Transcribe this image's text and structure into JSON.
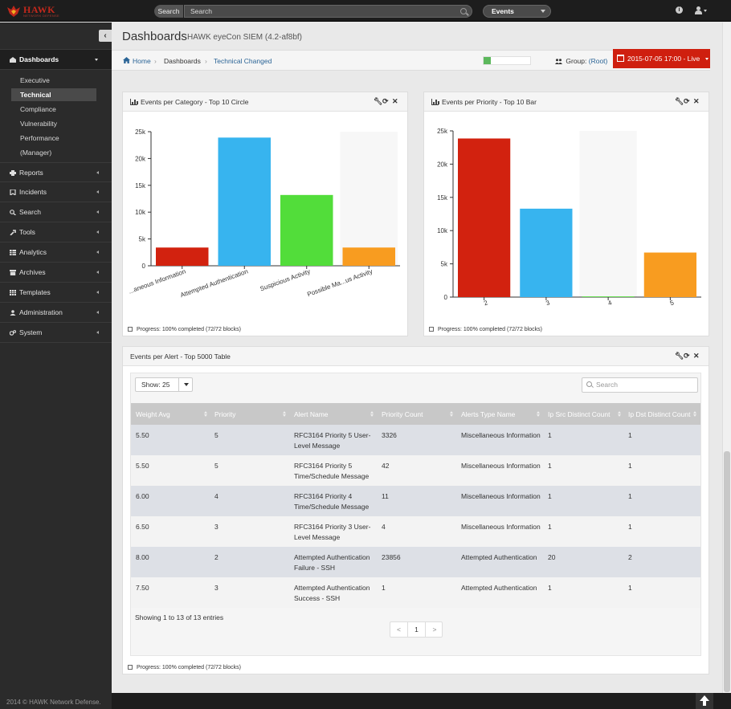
{
  "topbar": {
    "logo_text": "HAWK",
    "logo_sub": "NETWORK DEFENSE",
    "search_button": "Search",
    "search_placeholder": "Search",
    "events_select": "Events"
  },
  "sidebar": {
    "sections": [
      {
        "label": "Dashboards",
        "icon": "dashboard-icon",
        "expanded": true
      },
      {
        "label": "Reports",
        "icon": "print-icon"
      },
      {
        "label": "Incidents",
        "icon": "bookmark-icon"
      },
      {
        "label": "Search",
        "icon": "search-icon"
      },
      {
        "label": "Tools",
        "icon": "wrench-icon"
      },
      {
        "label": "Analytics",
        "icon": "table-icon"
      },
      {
        "label": "Archives",
        "icon": "archive-icon"
      },
      {
        "label": "Templates",
        "icon": "grid-icon"
      },
      {
        "label": "Administration",
        "icon": "user-icon"
      },
      {
        "label": "System",
        "icon": "cogs-icon"
      }
    ],
    "dashboards_sub": [
      "Executive",
      "Technical",
      "Compliance",
      "Vulnerability",
      "Performance",
      "(Manager)"
    ],
    "active_sub": "Technical",
    "footer": "2014 © HAWK Network Defense."
  },
  "header": {
    "title": "Dashboards",
    "subtitle": "HAWK eyeCon SIEM (4.2-af8bf)"
  },
  "breadcrumb": {
    "home": "Home",
    "dashboards": "Dashboards",
    "current": "Technical Changed"
  },
  "status": {
    "progress_fraction": 0.15,
    "group_label": "Group:",
    "group_value": "(Root)",
    "date_button": "2015-07-05 17:00 - Live"
  },
  "colors": {
    "red": "#d2220f",
    "blue": "#37b4ef",
    "green": "#52dd3a",
    "orange": "#f89c20",
    "accent_red": "#cf1f0f",
    "link_blue": "#2a6496"
  },
  "panel_category": {
    "title": "Events per Category - Top 10 Circle",
    "footer": "Progress: 100% completed (72/72 blocks)"
  },
  "panel_priority": {
    "title": "Events per Priority - Top 10 Bar",
    "footer": "Progress: 100% completed (72/72 blocks)"
  },
  "panel_alert": {
    "title": "Events per Alert - Top 5000 Table",
    "footer": "Progress: 100% completed (72/72 blocks)"
  },
  "chart_data": [
    {
      "type": "bar",
      "categories": [
        "...aneous Information",
        "Attempted Authentication",
        "Suspicious Activity",
        "Possible Ma...us Activity"
      ],
      "values": [
        3400,
        23900,
        13200,
        3400
      ],
      "colors": [
        "#d2220f",
        "#37b4ef",
        "#52dd3a",
        "#f89c20"
      ],
      "yticks": [
        "0",
        "5k",
        "10k",
        "15k",
        "20k",
        "25k"
      ],
      "ylim": [
        0,
        25000
      ],
      "grid": false
    },
    {
      "type": "bar",
      "categories": [
        "2",
        "3",
        "4",
        "5"
      ],
      "values": [
        23856,
        13300,
        100,
        6700
      ],
      "colors": [
        "#d2220f",
        "#37b4ef",
        "#52dd3a",
        "#f89c20"
      ],
      "yticks": [
        "0",
        "5k",
        "10k",
        "15k",
        "20k",
        "25k"
      ],
      "ylim": [
        0,
        25000
      ],
      "grid": false
    }
  ],
  "table": {
    "show_label": "Show: 25",
    "search_placeholder": "Search",
    "columns": [
      "Weight Avg",
      "Priority",
      "Alert Name",
      "Priority Count",
      "Alerts Type Name",
      "Ip Src Distinct Count",
      "Ip Dst Distinct Count"
    ],
    "rows": [
      [
        "5.50",
        "5",
        "RFC3164 Priority 5 User-Level Message",
        "3326",
        "Miscellaneous Information",
        "1",
        "1"
      ],
      [
        "5.50",
        "5",
        "RFC3164 Priority 5 Time/Schedule Message",
        "42",
        "Miscellaneous Information",
        "1",
        "1"
      ],
      [
        "6.00",
        "4",
        "RFC3164 Priority 4 Time/Schedule Message",
        "11",
        "Miscellaneous Information",
        "1",
        "1"
      ],
      [
        "6.50",
        "3",
        "RFC3164 Priority 3 User-Level Message",
        "4",
        "Miscellaneous Information",
        "1",
        "1"
      ],
      [
        "8.00",
        "2",
        "Attempted Authentication Failure - SSH",
        "23856",
        "Attempted Authentication",
        "20",
        "2"
      ],
      [
        "7.50",
        "3",
        "Attempted Authentication Success - SSH",
        "1",
        "Attempted Authentication",
        "1",
        "1"
      ]
    ],
    "info": "Showing 1 to 13 of 13 entries",
    "pager": [
      "<",
      "1",
      ">"
    ]
  }
}
